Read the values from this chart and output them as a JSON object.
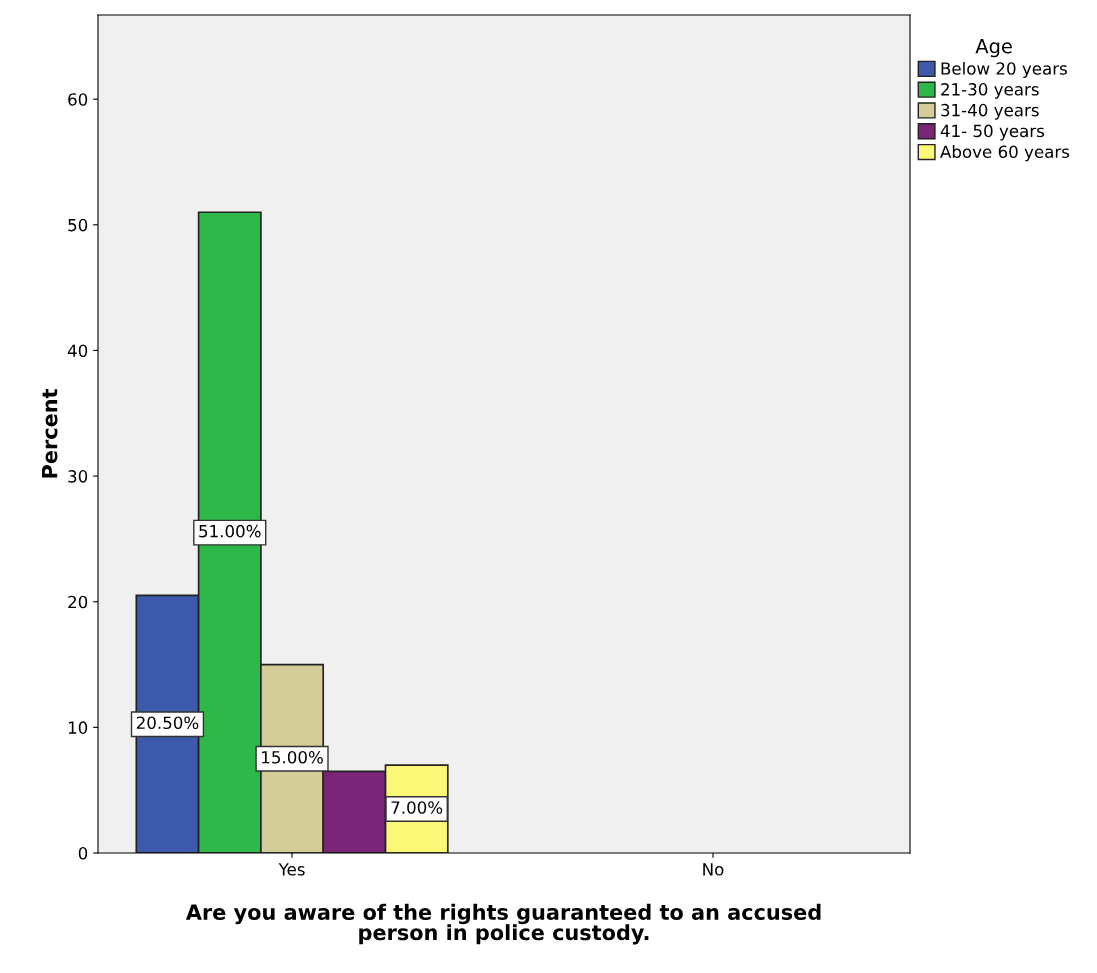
{
  "chart_data": {
    "type": "bar",
    "xlabel": "Are you aware of the rights guaranteed to an accused\nperson in police custody.",
    "ylabel": "Percent",
    "legend_title": "Age",
    "legend": "right",
    "categories": [
      "Yes",
      "No"
    ],
    "series": [
      {
        "name": "Below 20 years",
        "color": "#3d59ab",
        "values": [
          20.5,
          null
        ],
        "value_labels": [
          "20.50%",
          null
        ]
      },
      {
        "name": "21-30 years",
        "color": "#2fb84a",
        "values": [
          51.0,
          null
        ],
        "value_labels": [
          "51.00%",
          null
        ]
      },
      {
        "name": "31-40 years",
        "color": "#d4cd99",
        "values": [
          15.0,
          null
        ],
        "value_labels": [
          "15.00%",
          null
        ]
      },
      {
        "name": "41- 50 years",
        "color": "#7b2579",
        "values": [
          6.5,
          null
        ],
        "value_labels": [
          null,
          null
        ]
      },
      {
        "name": "Above 60 years",
        "color": "#fbf877",
        "values": [
          7.0,
          null
        ],
        "value_labels": [
          "7.00%",
          null
        ]
      }
    ],
    "ylim": [
      0,
      66.7
    ],
    "yticks": [
      0,
      10,
      20,
      30,
      40,
      50,
      60
    ],
    "grid": false
  }
}
